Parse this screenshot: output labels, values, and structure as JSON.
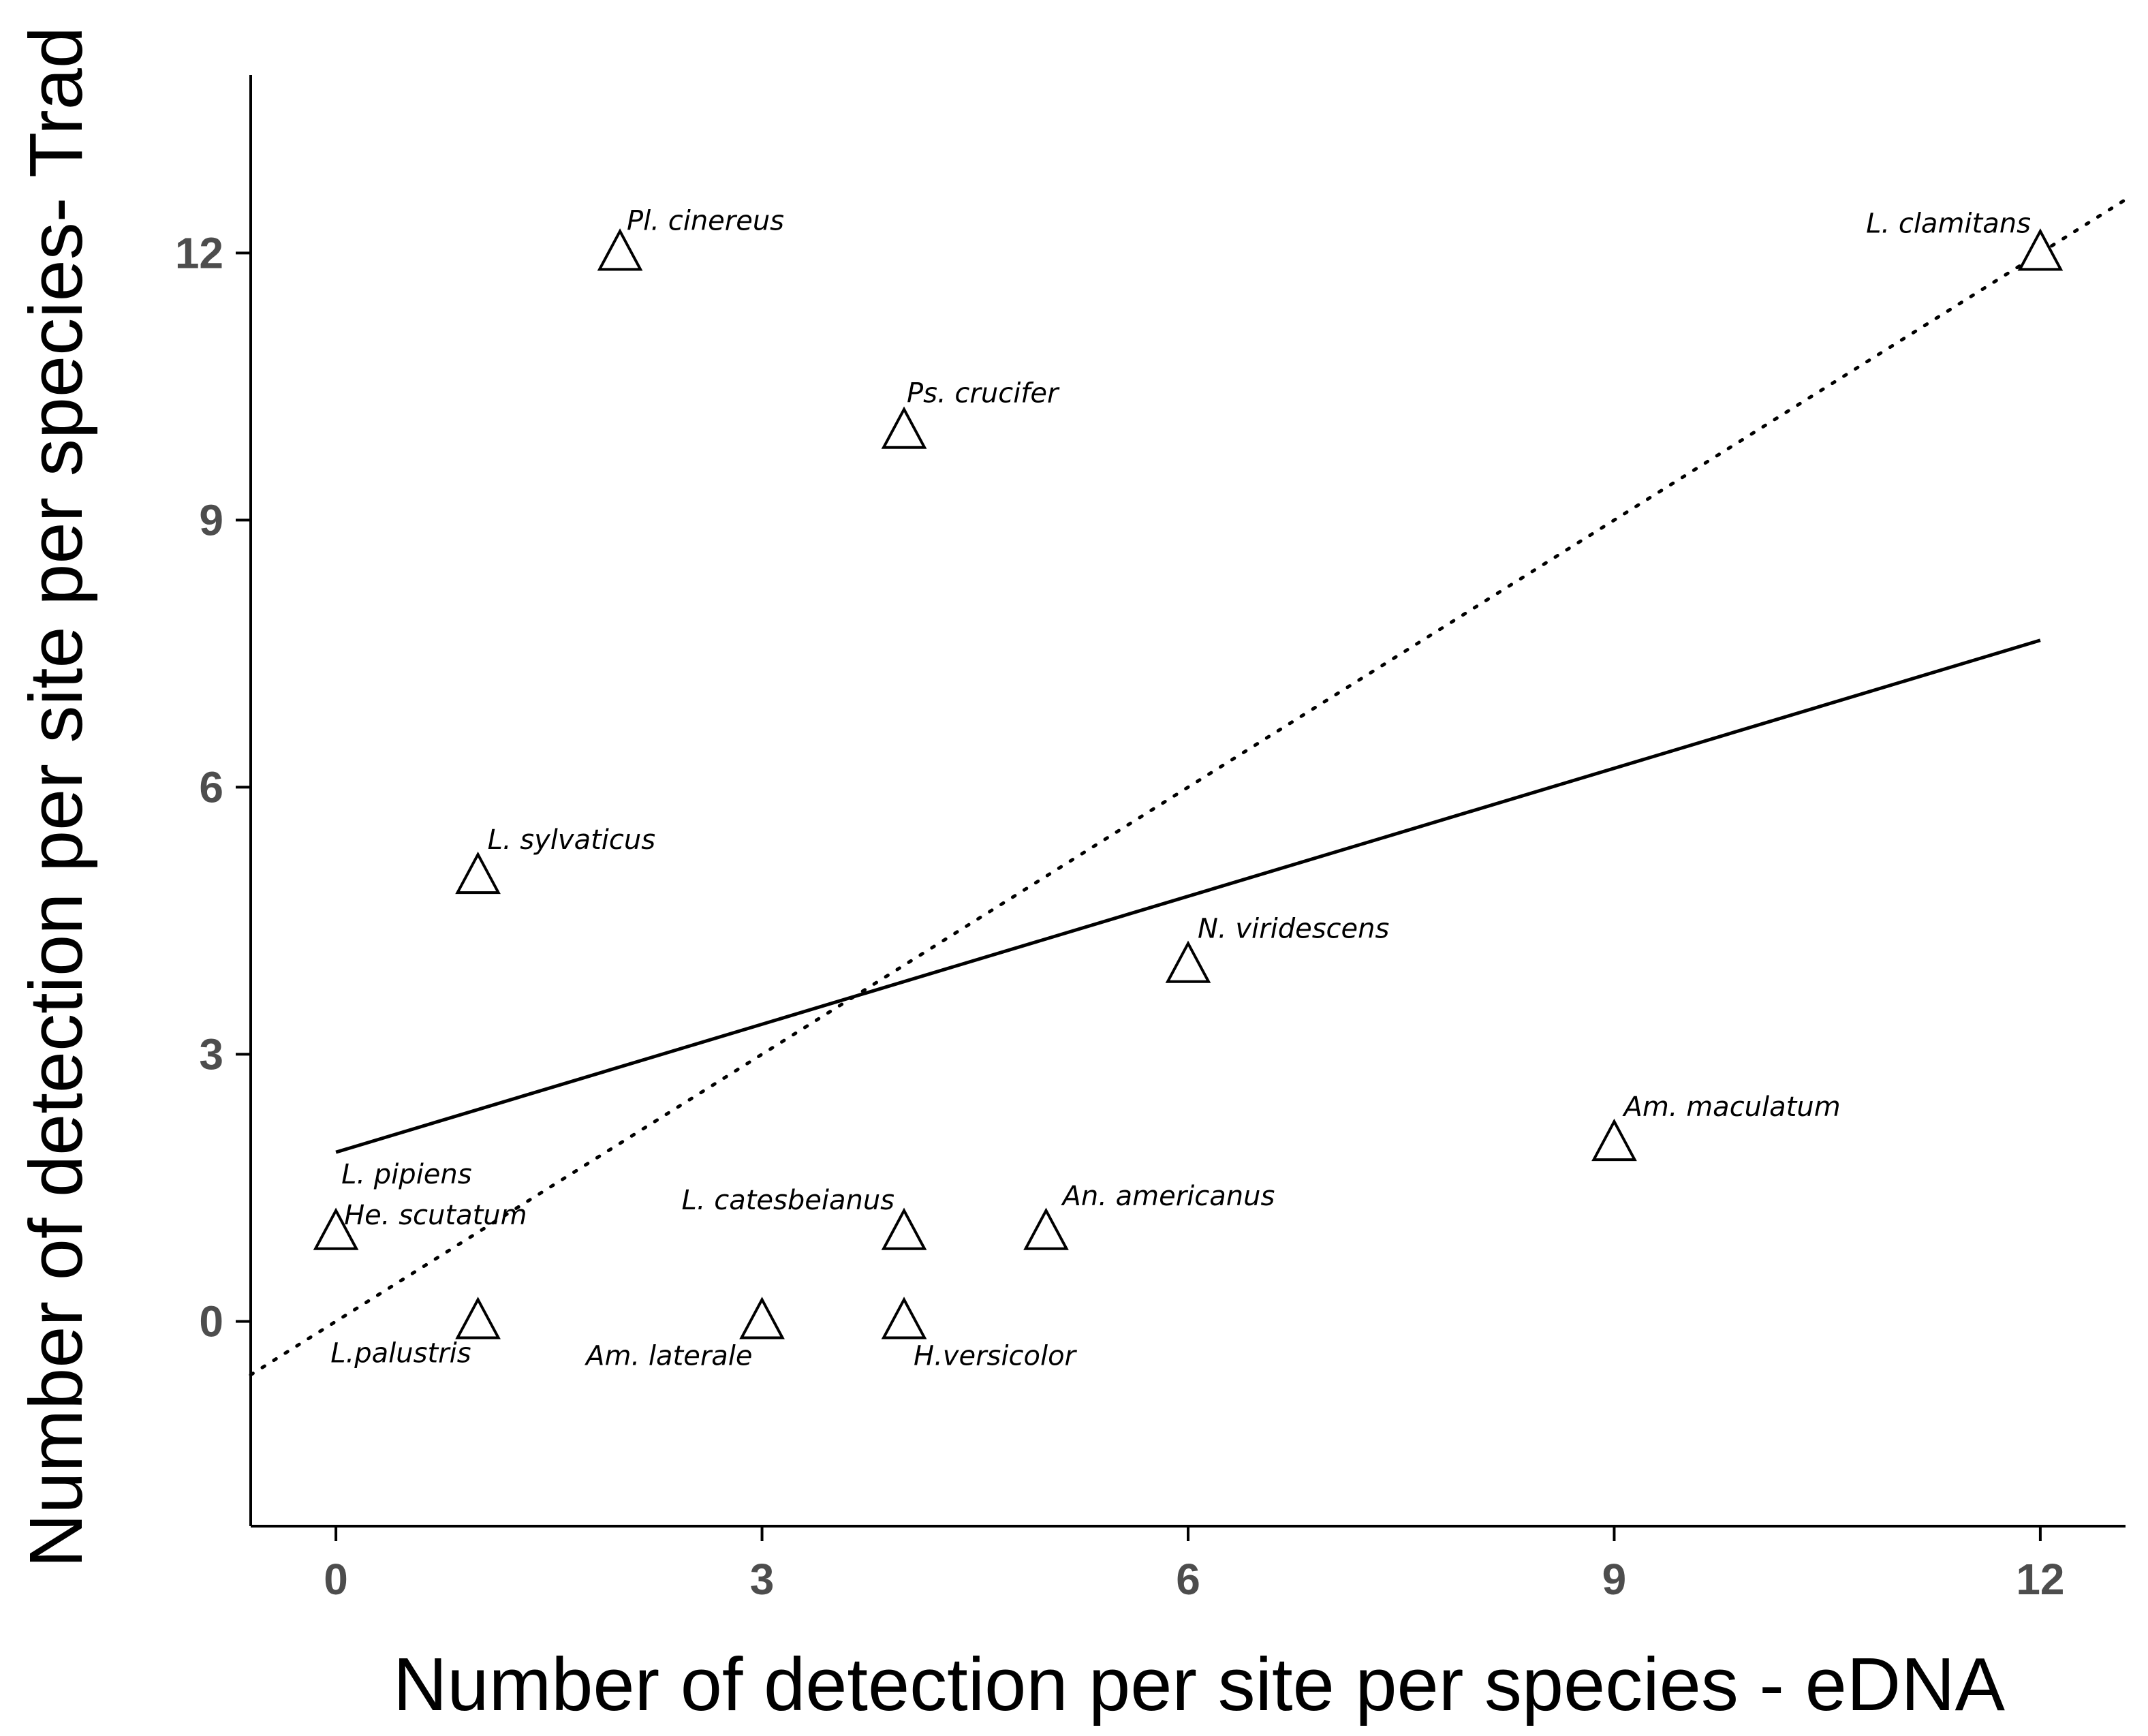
{
  "chart_data": {
    "type": "scatter",
    "title": "",
    "xlabel": "Number of detection per site per species - eDNA",
    "ylabel": "Number of detection per site per species- Trad",
    "xlim": [
      -0.6,
      12.6
    ],
    "ylim": [
      -2.3,
      14.0
    ],
    "xticks": [
      0,
      3,
      6,
      9,
      12
    ],
    "yticks": [
      0,
      3,
      6,
      9,
      12
    ],
    "grid": false,
    "points": [
      {
        "x": 2,
        "y": 12,
        "label": "Pl. cinereus"
      },
      {
        "x": 12,
        "y": 12,
        "label": "L. clamitans"
      },
      {
        "x": 4,
        "y": 10,
        "label": "Ps. crucifer"
      },
      {
        "x": 1,
        "y": 5,
        "label": "L. sylvaticus"
      },
      {
        "x": 6,
        "y": 4,
        "label": "N. viridescens"
      },
      {
        "x": 9,
        "y": 2,
        "label": "Am. maculatum"
      },
      {
        "x": 0,
        "y": 1,
        "label": "L. pipiens"
      },
      {
        "x": 0,
        "y": 1,
        "label": "He. scutatum"
      },
      {
        "x": 4,
        "y": 1,
        "label": "L. catesbeianus"
      },
      {
        "x": 5,
        "y": 1,
        "label": "An. americanus"
      },
      {
        "x": 1,
        "y": 0,
        "label": "L.palustris"
      },
      {
        "x": 3,
        "y": 0,
        "label": "Am. laterale"
      },
      {
        "x": 4,
        "y": 0,
        "label": "H.versicolor"
      }
    ],
    "fit_line": {
      "style": "solid",
      "x": [
        0,
        12
      ],
      "y": [
        1.9,
        7.65
      ]
    },
    "reference_line": {
      "style": "dotted",
      "description": "1:1 line y = x",
      "x": [
        -0.6,
        12.6
      ],
      "y": [
        -0.6,
        12.6
      ]
    }
  }
}
